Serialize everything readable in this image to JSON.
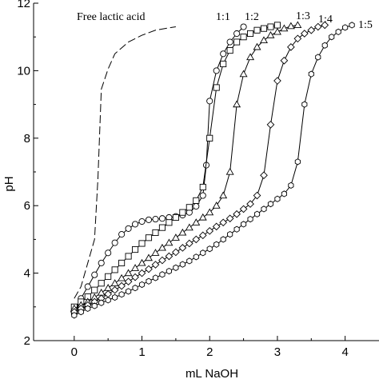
{
  "chart_data": {
    "type": "line",
    "title": "",
    "xlabel": "mL NaOH",
    "ylabel": "pH",
    "xlim": [
      -0.6,
      4.5
    ],
    "ylim": [
      2,
      12
    ],
    "x_ticks": [
      "0",
      "1",
      "2",
      "3",
      "4"
    ],
    "y_ticks": [
      "2",
      "4",
      "6",
      "8",
      "10",
      "12"
    ],
    "grid": false,
    "legend": "labels placed next to curve ends",
    "series": [
      {
        "name": "Free lactic acid",
        "marker": "none",
        "line_style": "dashed",
        "x": [
          0.0,
          0.1,
          0.2,
          0.3,
          0.35,
          0.4,
          0.5,
          0.6,
          0.8,
          1.0,
          1.2,
          1.4,
          1.5
        ],
        "y": [
          3.25,
          3.6,
          4.3,
          5.0,
          6.8,
          9.45,
          10.05,
          10.5,
          10.85,
          11.05,
          11.2,
          11.27,
          11.3
        ]
      },
      {
        "name": "1:1",
        "marker": "circle",
        "line_style": "solid",
        "x": [
          0.0,
          0.1,
          0.2,
          0.3,
          0.4,
          0.5,
          0.6,
          0.7,
          0.8,
          0.9,
          1.0,
          1.1,
          1.2,
          1.3,
          1.4,
          1.5,
          1.6,
          1.7,
          1.8,
          1.9,
          1.95,
          2.0,
          2.1,
          2.2,
          2.3,
          2.4,
          2.5
        ],
        "y": [
          2.8,
          3.25,
          3.6,
          3.95,
          4.3,
          4.6,
          4.9,
          5.15,
          5.32,
          5.45,
          5.53,
          5.58,
          5.6,
          5.62,
          5.65,
          5.68,
          5.72,
          5.8,
          5.98,
          6.3,
          7.2,
          9.1,
          10.0,
          10.5,
          10.85,
          11.1,
          11.3
        ]
      },
      {
        "name": "1:2",
        "marker": "square",
        "line_style": "solid",
        "x": [
          0.0,
          0.1,
          0.2,
          0.3,
          0.4,
          0.5,
          0.6,
          0.7,
          0.8,
          0.9,
          1.0,
          1.1,
          1.2,
          1.3,
          1.4,
          1.5,
          1.6,
          1.7,
          1.8,
          1.9,
          2.0,
          2.1,
          2.2,
          2.3,
          2.4,
          2.5,
          2.6,
          2.7,
          2.8,
          2.9,
          3.0
        ],
        "y": [
          3.0,
          3.15,
          3.3,
          3.5,
          3.7,
          3.9,
          4.1,
          4.3,
          4.5,
          4.7,
          4.88,
          5.05,
          5.2,
          5.35,
          5.5,
          5.65,
          5.8,
          5.95,
          6.15,
          6.55,
          8.0,
          9.5,
          10.2,
          10.6,
          10.85,
          11.0,
          11.1,
          11.2,
          11.25,
          11.3,
          11.35
        ]
      },
      {
        "name": "1:3",
        "marker": "triangle",
        "line_style": "solid",
        "x": [
          0.0,
          0.1,
          0.2,
          0.3,
          0.4,
          0.5,
          0.6,
          0.7,
          0.8,
          0.9,
          1.0,
          1.1,
          1.2,
          1.3,
          1.4,
          1.5,
          1.6,
          1.7,
          1.8,
          1.9,
          2.0,
          2.1,
          2.2,
          2.3,
          2.4,
          2.5,
          2.6,
          2.7,
          2.8,
          2.9,
          3.0,
          3.1,
          3.2,
          3.3
        ],
        "y": [
          2.95,
          3.05,
          3.15,
          3.28,
          3.42,
          3.56,
          3.7,
          3.85,
          4.0,
          4.15,
          4.3,
          4.45,
          4.6,
          4.75,
          4.9,
          5.05,
          5.2,
          5.35,
          5.5,
          5.65,
          5.8,
          6.0,
          6.3,
          7.0,
          9.0,
          9.9,
          10.4,
          10.7,
          10.9,
          11.05,
          11.15,
          11.25,
          11.32,
          11.35
        ]
      },
      {
        "name": "1:4",
        "marker": "diamond",
        "line_style": "solid",
        "x": [
          0.0,
          0.1,
          0.2,
          0.3,
          0.4,
          0.5,
          0.6,
          0.7,
          0.8,
          0.9,
          1.0,
          1.1,
          1.2,
          1.3,
          1.4,
          1.5,
          1.6,
          1.7,
          1.8,
          1.9,
          2.0,
          2.1,
          2.2,
          2.3,
          2.4,
          2.5,
          2.6,
          2.7,
          2.8,
          2.9,
          3.0,
          3.1,
          3.2,
          3.3,
          3.4,
          3.5,
          3.6,
          3.7
        ],
        "y": [
          2.85,
          2.95,
          3.05,
          3.15,
          3.25,
          3.38,
          3.5,
          3.62,
          3.75,
          3.88,
          4.0,
          4.12,
          4.25,
          4.38,
          4.5,
          4.62,
          4.75,
          4.88,
          5.0,
          5.12,
          5.25,
          5.38,
          5.5,
          5.62,
          5.75,
          5.9,
          6.05,
          6.3,
          6.9,
          8.4,
          9.7,
          10.3,
          10.7,
          10.95,
          11.1,
          11.2,
          11.3,
          11.35
        ]
      },
      {
        "name": "1:5",
        "marker": "hexagon",
        "line_style": "solid",
        "x": [
          0.0,
          0.1,
          0.2,
          0.3,
          0.4,
          0.5,
          0.6,
          0.7,
          0.8,
          0.9,
          1.0,
          1.1,
          1.2,
          1.3,
          1.4,
          1.5,
          1.6,
          1.7,
          1.8,
          1.9,
          2.0,
          2.1,
          2.2,
          2.3,
          2.4,
          2.5,
          2.6,
          2.7,
          2.8,
          2.9,
          3.0,
          3.1,
          3.2,
          3.3,
          3.4,
          3.5,
          3.6,
          3.7,
          3.8,
          3.9,
          4.0,
          4.1
        ],
        "y": [
          2.75,
          2.85,
          2.95,
          3.03,
          3.12,
          3.2,
          3.28,
          3.37,
          3.46,
          3.56,
          3.66,
          3.76,
          3.86,
          3.96,
          4.06,
          4.16,
          4.26,
          4.36,
          4.48,
          4.6,
          4.72,
          4.85,
          5.0,
          5.15,
          5.3,
          5.45,
          5.6,
          5.75,
          5.9,
          6.05,
          6.2,
          6.35,
          6.6,
          7.3,
          9.0,
          9.9,
          10.4,
          10.75,
          11.0,
          11.15,
          11.28,
          11.35
        ]
      }
    ]
  }
}
